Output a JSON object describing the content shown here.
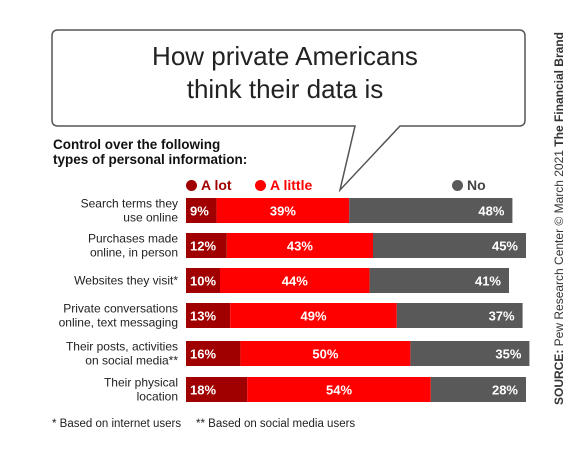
{
  "header": {
    "title_line1": "How private Americans",
    "title_line2": "think their data is"
  },
  "subtitle_line1": "Control over the following",
  "subtitle_line2": "types of personal information:",
  "legend": {
    "a_lot": "A lot",
    "a_little": "A little",
    "no": "No"
  },
  "colors": {
    "a_lot": "#a00000",
    "a_little": "#ff0000",
    "no": "#595959"
  },
  "chart_data": {
    "type": "bar",
    "stacked": true,
    "orientation": "horizontal",
    "categories": [
      [
        "Search terms they",
        "use online"
      ],
      [
        "Purchases made",
        "online, in person"
      ],
      [
        "Websites they visit*"
      ],
      [
        "Private conversations",
        "online, text messaging"
      ],
      [
        "Their posts, activities",
        "on social media**"
      ],
      [
        "Their physical",
        "location"
      ]
    ],
    "series": [
      {
        "name": "A lot",
        "values": [
          9,
          12,
          10,
          13,
          16,
          18
        ]
      },
      {
        "name": "A little",
        "values": [
          39,
          43,
          44,
          49,
          50,
          54
        ]
      },
      {
        "name": "No",
        "values": [
          48,
          45,
          41,
          37,
          35,
          28
        ]
      }
    ],
    "data_labels": [
      [
        "9%",
        "12%",
        "10%",
        "13%",
        "16%",
        "18%"
      ],
      [
        "39%",
        "43%",
        "44%",
        "49%",
        "50%",
        "54%"
      ],
      [
        "48%",
        "45%",
        "41%",
        "37%",
        "35%",
        "28%"
      ]
    ],
    "xlim": [
      0,
      100
    ]
  },
  "footnotes": {
    "internet": "* Based on internet users",
    "social": "** Based on social media users"
  },
  "source": {
    "label": "SOURCE:",
    "text": " Pew Research Center © March 2021 ",
    "brand": "The Financial Brand"
  }
}
